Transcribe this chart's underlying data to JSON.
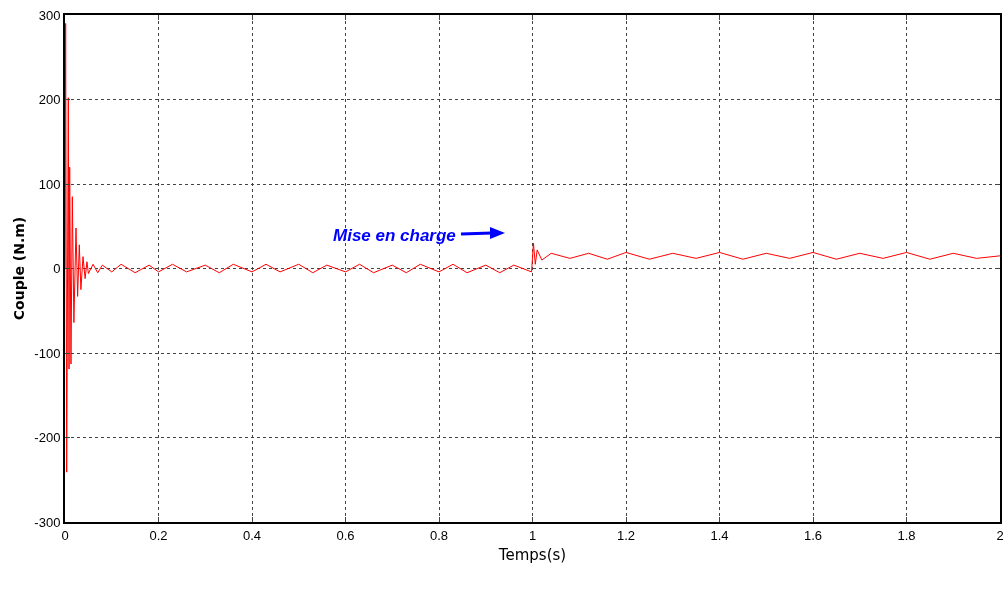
{
  "chart_data": {
    "type": "line",
    "xlabel": "Temps(s)",
    "ylabel": "Couple (N.m)",
    "xlim": [
      0,
      2
    ],
    "xticks": [
      0,
      0.2,
      0.4,
      0.6,
      0.8,
      1,
      1.2,
      1.4,
      1.6,
      1.8,
      2
    ],
    "ylim": [
      -300,
      300
    ],
    "yticks": [
      -300,
      -200,
      -100,
      0,
      100,
      200,
      300
    ],
    "grid": true,
    "marker": "none",
    "line_style": "solid",
    "annotations": [
      "Mise en charge"
    ],
    "series": [
      {
        "color": "#ff0000",
        "x": [
          0,
          0.0014,
          0.0036,
          0.0071,
          0.0086,
          0.01,
          0.0128,
          0.0157,
          0.019,
          0.0235,
          0.027,
          0.0306,
          0.034,
          0.0385,
          0.043,
          0.047,
          0.05,
          0.06,
          0.07,
          0.08,
          0.1,
          0.12,
          0.15,
          0.18,
          0.2,
          0.23,
          0.26,
          0.3,
          0.33,
          0.36,
          0.4,
          0.43,
          0.46,
          0.5,
          0.53,
          0.56,
          0.6,
          0.63,
          0.66,
          0.7,
          0.73,
          0.76,
          0.8,
          0.83,
          0.86,
          0.9,
          0.93,
          0.96,
          0.998,
          1.002,
          1.006,
          1.01,
          1.02,
          1.04,
          1.08,
          1.12,
          1.16,
          1.2,
          1.25,
          1.3,
          1.35,
          1.4,
          1.45,
          1.5,
          1.55,
          1.6,
          1.65,
          1.7,
          1.75,
          1.8,
          1.85,
          1.9,
          1.95,
          2
        ],
        "values": [
          0,
          290,
          -241,
          202,
          -119,
          120,
          -113,
          85,
          -64,
          48,
          -33,
          28,
          -25,
          14,
          -12,
          8,
          -6,
          5,
          -5,
          4,
          -4,
          5,
          -5,
          4,
          -4,
          5,
          -4,
          4,
          -5,
          5,
          -4,
          5,
          -4,
          5,
          -5,
          4,
          -4,
          5,
          -5,
          4,
          -5,
          5,
          -4,
          5,
          -5,
          4,
          -5,
          4,
          -4,
          30,
          5,
          22,
          10,
          18,
          12,
          18,
          11,
          19,
          11,
          18,
          12,
          19,
          11,
          18,
          12,
          19,
          11,
          18,
          12,
          19,
          11,
          18,
          12,
          15
        ]
      }
    ]
  }
}
